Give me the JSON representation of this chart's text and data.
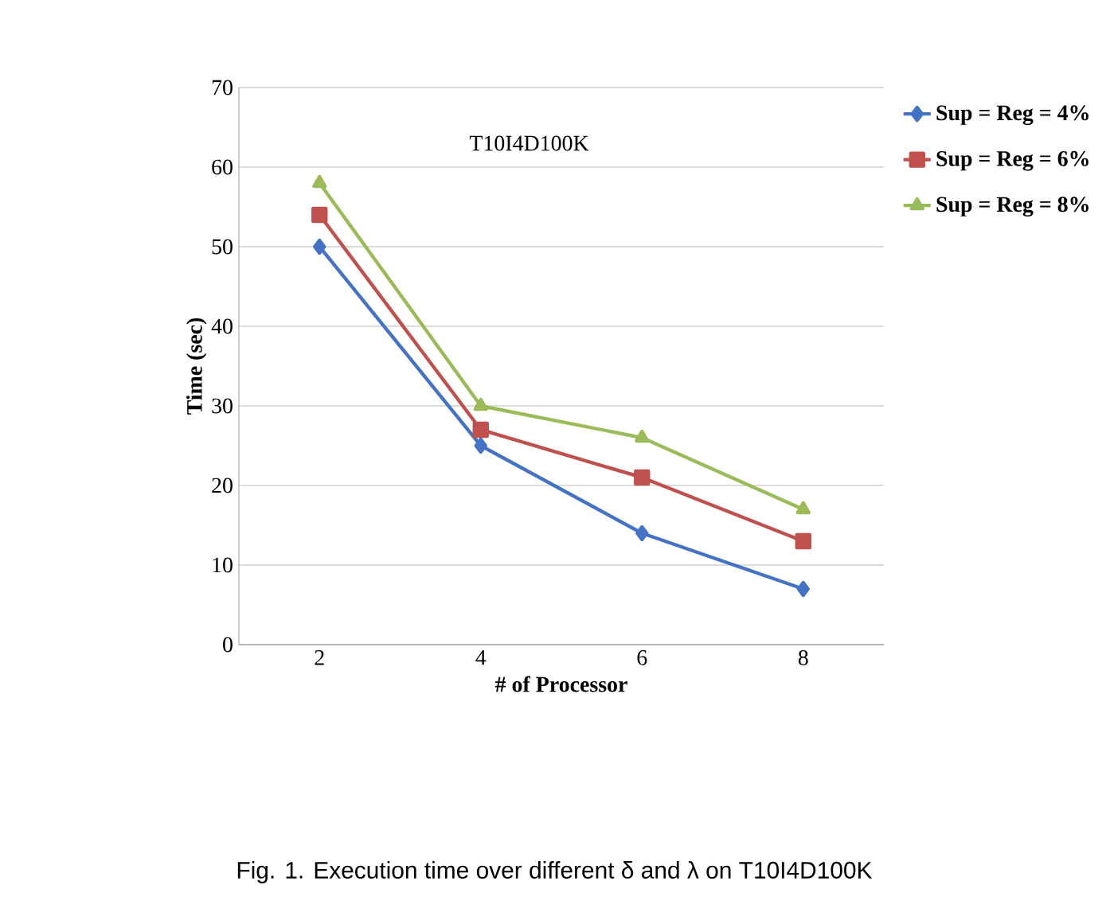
{
  "chart_data": {
    "type": "line",
    "xlabel": "# of Processor",
    "ylabel": "Time (sec)",
    "categories": [
      "2",
      "4",
      "6",
      "8"
    ],
    "series": [
      {
        "name": "Sup = Reg = 4%",
        "color": "#4472c4",
        "marker": "diamond",
        "values": [
          50,
          25,
          14,
          7
        ]
      },
      {
        "name": "Sup = Reg = 6%",
        "color": "#c0504d",
        "marker": "square",
        "values": [
          54,
          27,
          21,
          13
        ]
      },
      {
        "name": "Sup = Reg = 8%",
        "color": "#9bbb59",
        "marker": "triangle",
        "values": [
          58,
          30,
          26,
          17
        ]
      }
    ],
    "ylim": [
      0,
      70
    ],
    "yticks": [
      0,
      10,
      20,
      30,
      40,
      50,
      60,
      70
    ],
    "grid": "y",
    "legend": "top right",
    "line_style": "solid",
    "annotations": [
      "T10I4D100K",
      "Fig. 1. Execution time over different δ and λ on T10I4D100K"
    ]
  }
}
